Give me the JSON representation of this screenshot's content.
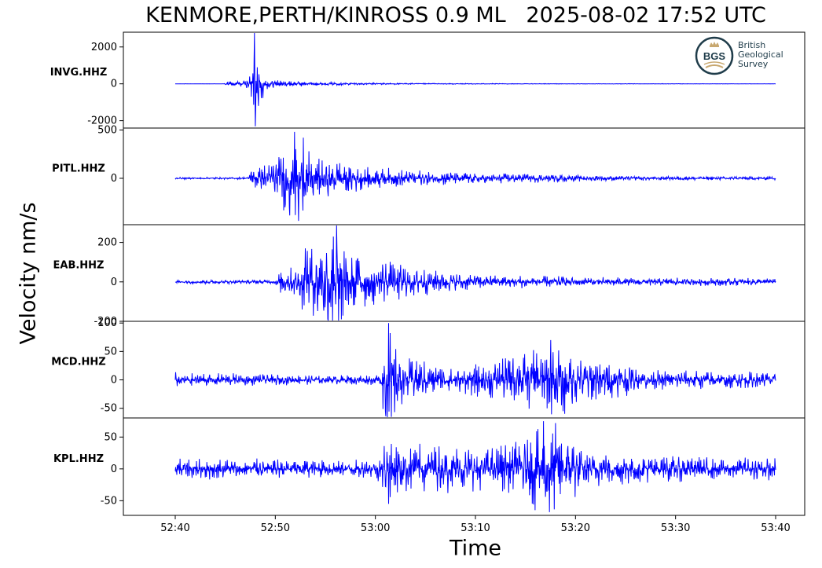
{
  "title": "KENMORE,PERTH/KINROSS 0.9 ML   2025-08-02 17:52 UTC",
  "ylabel": "Velocity nm/s",
  "xlabel": "Time",
  "logo": {
    "abbr": "BGS",
    "lines": [
      "British",
      "Geological",
      "Survey"
    ],
    "icon": "crown-icon"
  },
  "colors": {
    "trace": "#0000ff",
    "axis": "#000000",
    "logo_dark": "#1f3c4a",
    "logo_gold": "#c8a870"
  },
  "chart_data": {
    "type": "line",
    "x_ticks": [
      "52:40",
      "52:50",
      "53:00",
      "53:10",
      "53:20",
      "53:30",
      "53:40"
    ],
    "x_range": [
      "52:40",
      "53:40"
    ],
    "panels": [
      {
        "station": "INVG.HHZ",
        "ylim": [
          -2400,
          2800
        ],
        "y_ticks": [
          2000,
          0,
          -2000
        ],
        "y_tick_labels": [
          "2000",
          "0",
          "-2000"
        ],
        "envelope": [
          [
            0,
            5
          ],
          [
            4,
            5
          ],
          [
            4.9,
            5
          ],
          [
            5.0,
            150
          ],
          [
            7.0,
            200
          ],
          [
            7.5,
            450
          ],
          [
            7.9,
            2800
          ],
          [
            8.4,
            1200
          ],
          [
            9.2,
            300
          ],
          [
            11,
            180
          ],
          [
            15,
            90
          ],
          [
            22,
            40
          ],
          [
            35,
            15
          ],
          [
            60,
            8
          ]
        ],
        "spikes": [
          [
            7.9,
            2800
          ],
          [
            8.0,
            -2300
          ],
          [
            7.6,
            -700
          ],
          [
            8.2,
            900
          ],
          [
            8.3,
            -1200
          ]
        ]
      },
      {
        "station": "PITL.HHZ",
        "ylim": [
          -480,
          520
        ],
        "y_ticks": [
          500,
          0
        ],
        "y_tick_labels": [
          "500",
          "0"
        ],
        "envelope": [
          [
            0,
            10
          ],
          [
            7.3,
            12
          ],
          [
            7.5,
            120
          ],
          [
            9.6,
            180
          ],
          [
            11.5,
            480
          ],
          [
            12.2,
            420
          ],
          [
            14.5,
            220
          ],
          [
            20,
            120
          ],
          [
            30,
            60
          ],
          [
            45,
            25
          ],
          [
            60,
            20
          ]
        ],
        "spikes": [
          [
            11.9,
            480
          ],
          [
            12.3,
            -440
          ],
          [
            12.0,
            -380
          ],
          [
            12.8,
            420
          ],
          [
            11.4,
            -300
          ]
        ]
      },
      {
        "station": "EAB.HHZ",
        "ylim": [
          -200,
          290
        ],
        "y_ticks": [
          200,
          0,
          -200
        ],
        "y_tick_labels": [
          "200",
          "0",
          "-200"
        ],
        "envelope": [
          [
            0,
            10
          ],
          [
            10,
            12
          ],
          [
            10.2,
            60
          ],
          [
            12.5,
            90
          ],
          [
            12.8,
            140
          ],
          [
            15.8,
            290
          ],
          [
            17.5,
            160
          ],
          [
            24,
            80
          ],
          [
            30,
            40
          ],
          [
            45,
            22
          ],
          [
            60,
            20
          ]
        ],
        "spikes": [
          [
            16.1,
            290
          ],
          [
            16.3,
            -200
          ],
          [
            15.8,
            230
          ],
          [
            16.6,
            -190
          ],
          [
            12.7,
            -140
          ],
          [
            13.0,
            170
          ]
        ]
      },
      {
        "station": "MCD.HHZ",
        "ylim": [
          -67,
          103
        ],
        "y_ticks": [
          100,
          50,
          0,
          -50
        ],
        "y_tick_labels": [
          "100",
          "50",
          "0",
          "-50"
        ],
        "envelope": [
          [
            0,
            14
          ],
          [
            5,
            12
          ],
          [
            15,
            8
          ],
          [
            20.5,
            10
          ],
          [
            20.8,
            80
          ],
          [
            21.3,
            100
          ],
          [
            23,
            40
          ],
          [
            28,
            25
          ],
          [
            32,
            35
          ],
          [
            38,
            70
          ],
          [
            41,
            45
          ],
          [
            48,
            18
          ],
          [
            60,
            14
          ]
        ],
        "spikes": [
          [
            21.3,
            100
          ],
          [
            21.6,
            -65
          ],
          [
            21.0,
            -55
          ],
          [
            37.5,
            70
          ],
          [
            38.2,
            -40
          ]
        ]
      },
      {
        "station": "KPL.HHZ",
        "ylim": [
          -73,
          80
        ],
        "y_ticks": [
          50,
          0,
          -50
        ],
        "y_tick_labels": [
          "50",
          "0",
          "-50"
        ],
        "envelope": [
          [
            0,
            18
          ],
          [
            20,
            15
          ],
          [
            21,
            50
          ],
          [
            25,
            40
          ],
          [
            32,
            35
          ],
          [
            35,
            55
          ],
          [
            36.5,
            75
          ],
          [
            39.5,
            60
          ],
          [
            41,
            30
          ],
          [
            48,
            22
          ],
          [
            60,
            18
          ]
        ],
        "spikes": [
          [
            36.8,
            75
          ],
          [
            37.4,
            -68
          ],
          [
            38.0,
            72
          ],
          [
            21.3,
            -55
          ]
        ]
      }
    ]
  }
}
